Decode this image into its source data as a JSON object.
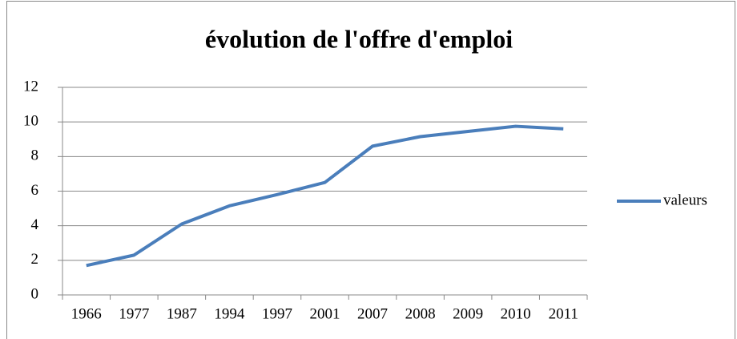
{
  "chart_data": {
    "type": "line",
    "title": "évolution de l'offre d'emploi",
    "categories": [
      "1966",
      "1977",
      "1987",
      "1994",
      "1997",
      "2001",
      "2007",
      "2008",
      "2009",
      "2010",
      "2011"
    ],
    "series": [
      {
        "name": "valeurs",
        "color": "#4a7ebb",
        "values": [
          1.7,
          2.3,
          4.1,
          5.15,
          5.8,
          6.5,
          8.6,
          9.15,
          9.45,
          9.75,
          9.6
        ]
      }
    ],
    "ylim": [
      0,
      12
    ],
    "yticks": [
      0,
      2,
      4,
      6,
      8,
      10,
      12
    ],
    "grid": true,
    "legend": "right"
  }
}
